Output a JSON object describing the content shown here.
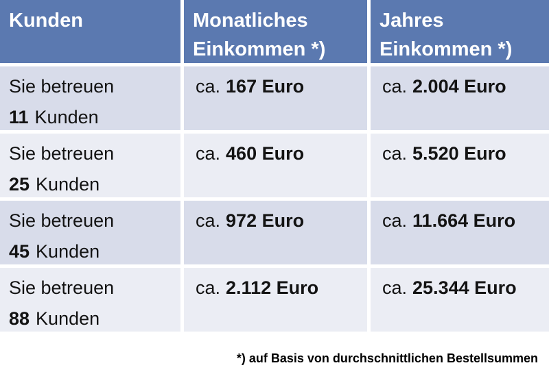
{
  "colors": {
    "header_bg": "#5b79b0",
    "row_odd_bg": "#d8dcea",
    "row_even_bg": "#ebedf4",
    "header_text": "#ffffff",
    "body_text": "#131313"
  },
  "table": {
    "headers": [
      {
        "line1": "Kunden",
        "line2": ""
      },
      {
        "line1": "Monatliches",
        "line2": "Einkommen *)"
      },
      {
        "line1": "Jahres",
        "line2": "Einkommen *)"
      }
    ],
    "rows": [
      {
        "prefix": "Sie betreuen",
        "customers": "11",
        "customers_label": "Kunden",
        "ca": "ca.",
        "monthly": "167 Euro",
        "yearly": "2.004 Euro"
      },
      {
        "prefix": "Sie betreuen",
        "customers": "25",
        "customers_label": "Kunden",
        "ca": "ca.",
        "monthly": "460 Euro",
        "yearly": "5.520 Euro"
      },
      {
        "prefix": "Sie betreuen",
        "customers": "45",
        "customers_label": "Kunden",
        "ca": "ca.",
        "monthly": "972 Euro",
        "yearly": "11.664 Euro"
      },
      {
        "prefix": "Sie betreuen",
        "customers": "88",
        "customers_label": "Kunden",
        "ca": "ca.",
        "monthly": "2.112 Euro",
        "yearly": "25.344 Euro"
      }
    ]
  },
  "footnote": "*) auf Basis von durchschnittlichen Bestellsummen"
}
